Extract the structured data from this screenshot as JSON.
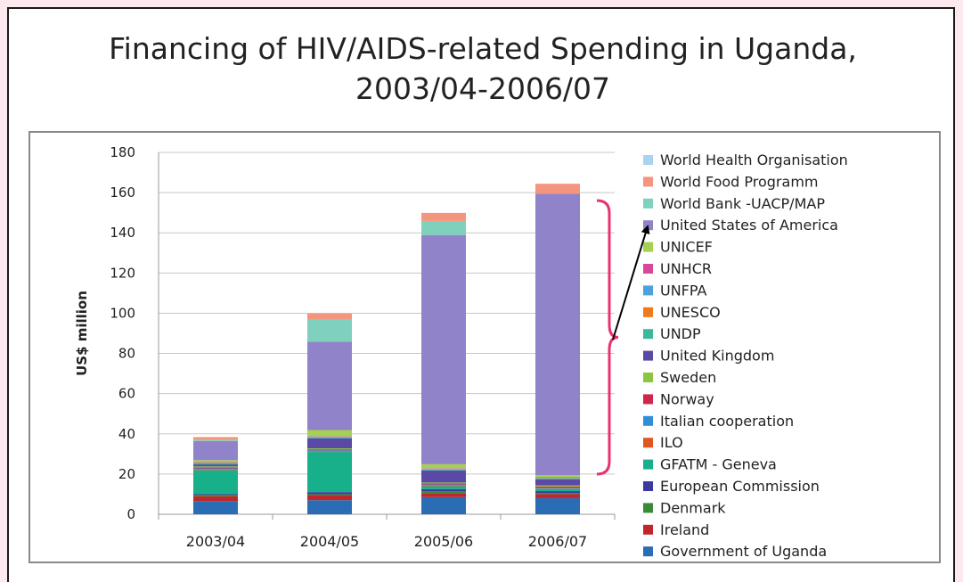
{
  "title_lines": [
    "Financing of HIV/AIDS-related Spending in Uganda,",
    "2003/04-2006/07"
  ],
  "colors": {
    "page_background": "#fbe9ee",
    "bracket": "#e8336d",
    "arrow": "#000000"
  },
  "chart_data": {
    "type": "bar",
    "stacked": true,
    "title": "Financing of HIV/AIDS-related Spending in Uganda, 2003/04-2006/07",
    "xlabel": "",
    "ylabel": "US$ million",
    "ylim": [
      0,
      180
    ],
    "yticks": [
      0,
      20,
      40,
      60,
      80,
      100,
      120,
      140,
      160,
      180
    ],
    "grid": true,
    "legend_position": "right",
    "categories": [
      "2003/04",
      "2004/05",
      "2005/06",
      "2006/07"
    ],
    "series": [
      {
        "name": "Government of Uganda",
        "color": "#2a6db5",
        "values": [
          6.5,
          7,
          8.5,
          8
        ]
      },
      {
        "name": "Ireland",
        "color": "#c0262c",
        "values": [
          2.5,
          2.5,
          2,
          2
        ]
      },
      {
        "name": "Denmark",
        "color": "#3a8a3a",
        "values": [
          0.5,
          0.5,
          1,
          0.5
        ]
      },
      {
        "name": "European Commission",
        "color": "#3a3aa0",
        "values": [
          0.5,
          1,
          1,
          1
        ]
      },
      {
        "name": "GFATM - Geneva",
        "color": "#17b08a",
        "values": [
          12,
          20,
          1.5,
          1
        ]
      },
      {
        "name": "ILO",
        "color": "#e0561f",
        "values": [
          0.3,
          0.3,
          0.3,
          0.3
        ]
      },
      {
        "name": "Italian cooperation",
        "color": "#2e8fd8",
        "values": [
          0.5,
          0.5,
          0.5,
          0.5
        ]
      },
      {
        "name": "Norway",
        "color": "#d0254e",
        "values": [
          0.5,
          0.5,
          0.5,
          0.5
        ]
      },
      {
        "name": "Sweden",
        "color": "#8cc63f",
        "values": [
          0.5,
          0.5,
          0.5,
          0.5
        ]
      },
      {
        "name": "United Kingdom",
        "color": "#5a4aa6",
        "values": [
          1,
          5,
          6,
          3
        ]
      },
      {
        "name": "UNDP",
        "color": "#3cb89a",
        "values": [
          0.5,
          0.5,
          0.5,
          0.5
        ]
      },
      {
        "name": "UNESCO",
        "color": "#f07a1a",
        "values": [
          0.2,
          0.2,
          0.2,
          0.2
        ]
      },
      {
        "name": "UNFPA",
        "color": "#4aa3df",
        "values": [
          0.2,
          0.2,
          0.2,
          0.2
        ]
      },
      {
        "name": "UNHCR",
        "color": "#d9479a",
        "values": [
          0.2,
          0.2,
          0.2,
          0.2
        ]
      },
      {
        "name": "UNICEF",
        "color": "#a6d04f",
        "values": [
          1,
          3,
          2,
          1
        ]
      },
      {
        "name": "United States of America",
        "color": "#9183c9",
        "values": [
          9.5,
          44,
          114,
          140
        ]
      },
      {
        "name": "World Bank -UACP/MAP",
        "color": "#7fd0bd",
        "values": [
          0.5,
          11,
          7,
          0
        ]
      },
      {
        "name": "World Food Programm",
        "color": "#f4957d",
        "values": [
          1.5,
          3,
          4,
          5
        ]
      },
      {
        "name": "World Health Organisation",
        "color": "#a9d3ee",
        "values": [
          0,
          0,
          0,
          0
        ]
      }
    ]
  }
}
